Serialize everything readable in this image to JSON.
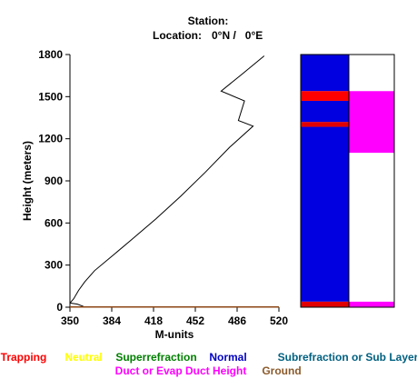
{
  "header": {
    "station_label": "Station:",
    "location_label": "Location:",
    "location_value": "0°N /   0°E"
  },
  "chart_data": [
    {
      "type": "line",
      "xlabel": "M-units",
      "ylabel": "Height (meters)",
      "xlim": [
        350,
        520
      ],
      "ylim": [
        0,
        1800
      ],
      "xticks": [
        "350",
        "384",
        "418",
        "452",
        "486",
        "520"
      ],
      "yticks": [
        "0",
        "300",
        "600",
        "900",
        "1200",
        "1500",
        "1800"
      ],
      "grid": false,
      "series": [
        {
          "color": "#000000",
          "points": [
            [
              350,
              30
            ],
            [
              353,
              60
            ],
            [
              357,
              120
            ],
            [
              362,
              180
            ],
            [
              370,
              260
            ],
            [
              385,
              370
            ],
            [
              400,
              480
            ],
            [
              420,
              630
            ],
            [
              440,
              790
            ],
            [
              460,
              960
            ],
            [
              480,
              1140
            ],
            [
              499,
              1290
            ],
            [
              487,
              1330
            ],
            [
              492,
              1470
            ],
            [
              473,
              1540
            ],
            [
              490,
              1660
            ],
            [
              508,
              1790
            ]
          ]
        },
        {
          "color": "#000000",
          "points": [
            [
              350,
              30
            ],
            [
              356,
              22
            ],
            [
              361,
              5
            ]
          ]
        },
        {
          "color": "#8b4513",
          "points": [
            [
              350,
              2
            ],
            [
              520,
              2
            ]
          ]
        }
      ]
    },
    {
      "type": "bar",
      "ylim": [
        0,
        1800
      ],
      "columns": [
        {
          "segments": [
            {
              "from": 0,
              "to": 40,
              "color": "#e00000"
            },
            {
              "from": 40,
              "to": 1285,
              "color": "#0000e0"
            },
            {
              "from": 1285,
              "to": 1320,
              "color": "#e00000"
            },
            {
              "from": 1320,
              "to": 1470,
              "color": "#0000e0"
            },
            {
              "from": 1470,
              "to": 1540,
              "color": "#ff0000"
            },
            {
              "from": 1540,
              "to": 1800,
              "color": "#0000e0"
            }
          ]
        },
        {
          "segments": [
            {
              "from": 0,
              "to": 40,
              "color": "#ff00ff"
            },
            {
              "from": 40,
              "to": 1100,
              "color": "#ffffff"
            },
            {
              "from": 1100,
              "to": 1540,
              "color": "#ff00ff"
            },
            {
              "from": 1540,
              "to": 1800,
              "color": "#ffffff"
            }
          ]
        }
      ]
    }
  ],
  "legend": {
    "row1": [
      {
        "label": "Trapping",
        "color": "#ff0000"
      },
      {
        "label": "Neutral",
        "color": "#ffff00"
      },
      {
        "label": "Superrefraction",
        "color": "#008000"
      },
      {
        "label": "Normal",
        "color": "#0000c0"
      },
      {
        "label": "Subrefraction or Sub Layer",
        "color": "#006080"
      }
    ],
    "row2": [
      {
        "label": "Duct or Evap Duct Height",
        "color": "#ff00ff"
      },
      {
        "label": "Ground",
        "color": "#8b5a2b"
      }
    ]
  }
}
